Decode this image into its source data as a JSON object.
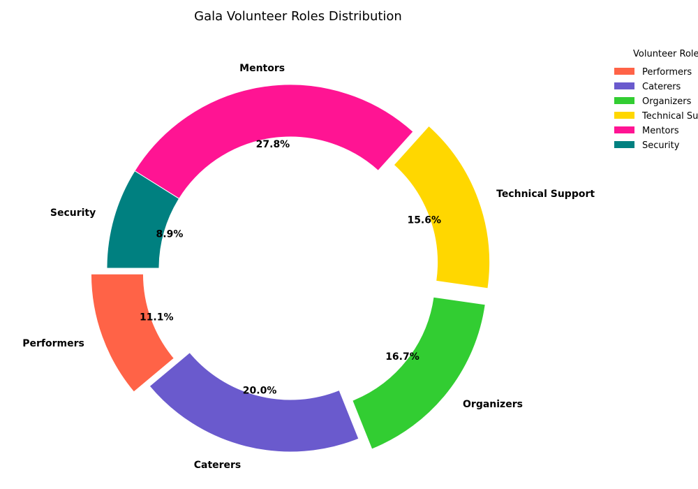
{
  "chart_data": {
    "type": "pie",
    "title": "Gala Volunteer Roles Distribution",
    "legend_title": "Volunteer Roles",
    "legend_position": "top-right",
    "donut": true,
    "categories": [
      "Performers",
      "Caterers",
      "Organizers",
      "Technical Support",
      "Mentors",
      "Security"
    ],
    "values": [
      11.1,
      20.0,
      16.7,
      15.6,
      27.8,
      8.9
    ],
    "value_labels": [
      "11.1%",
      "20.0%",
      "16.7%",
      "15.6%",
      "27.8%",
      "8.9%"
    ],
    "colors": [
      "#FF6347",
      "#6A5ACD",
      "#32CD32",
      "#FFD700",
      "#FF1493",
      "#008080"
    ],
    "exploded": [
      true,
      false,
      true,
      true,
      false,
      false
    ]
  }
}
